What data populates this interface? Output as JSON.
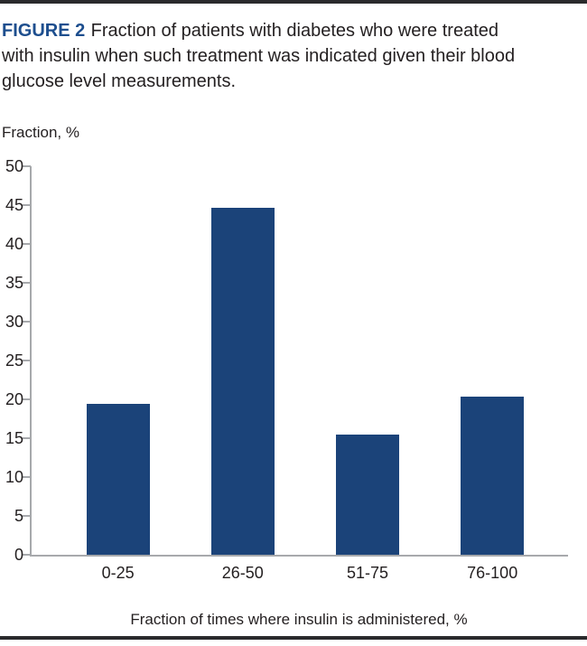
{
  "caption": {
    "label": "FIGURE 2",
    "line1": "Fraction of patients with diabetes who were treated",
    "line2": "with insulin when such treatment was indicated given their blood",
    "line3": "glucose level measurements."
  },
  "chart_data": {
    "type": "bar",
    "title": "FIGURE 2 Fraction of patients with diabetes who were treated with insulin when such treatment was indicated given their blood glucose level measurements.",
    "categories": [
      "0-25",
      "26-50",
      "51-75",
      "76-100"
    ],
    "values": [
      19.4,
      44.7,
      15.5,
      20.4
    ],
    "xlabel": "Fraction of times where insulin is administered, %",
    "ylabel": "Fraction, %",
    "ylim": [
      0,
      50
    ],
    "ytick_step": 5,
    "grid": false,
    "legend": "none",
    "bar_color": "#1b4379",
    "axis_color": "#a7a9ac",
    "text_color": "#231f20",
    "figure_label_color": "#1d4e8e",
    "rule_color": "#2a2a2c"
  }
}
